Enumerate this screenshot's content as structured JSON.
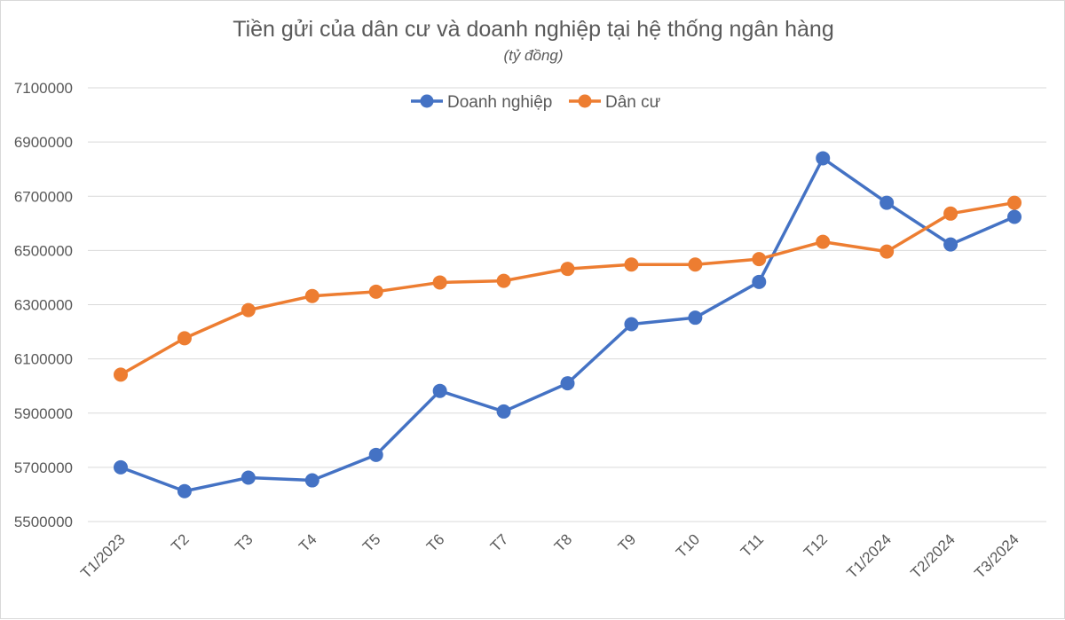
{
  "chart_data": {
    "type": "line",
    "title": "Tiền gửi của dân cư và doanh nghiệp tại hệ thống ngân hàng",
    "subtitle": "(tỷ đồng)",
    "categories": [
      "T1/2023",
      "T2",
      "T3",
      "T4",
      "T5",
      "T6",
      "T7",
      "T8",
      "T9",
      "T10",
      "T11",
      "T12",
      "T1/2024",
      "T2/2024",
      "T3/2024"
    ],
    "series": [
      {
        "name": "Doanh nghiệp",
        "color": "#4472C4",
        "values": [
          5700000,
          5612000,
          5662000,
          5652000,
          5746000,
          5982000,
          5906000,
          6010000,
          6228000,
          6252000,
          6384000,
          6840000,
          6676000,
          6522000,
          6624000
        ]
      },
      {
        "name": "Dân cư",
        "color": "#ED7D31",
        "values": [
          6042000,
          6176000,
          6280000,
          6332000,
          6348000,
          6382000,
          6388000,
          6432000,
          6448000,
          6448000,
          6468000,
          6532000,
          6496000,
          6636000,
          6676000
        ]
      }
    ],
    "ylim": [
      5500000,
      7100000
    ],
    "yticks": [
      5500000,
      5700000,
      5900000,
      6100000,
      6300000,
      6500000,
      6700000,
      6900000,
      7100000
    ],
    "ytick_labels": [
      "5500000",
      "5700000",
      "5900000",
      "6100000",
      "6300000",
      "6500000",
      "6700000",
      "6900000",
      "7100000"
    ],
    "grid": true,
    "legend_position": "top"
  }
}
